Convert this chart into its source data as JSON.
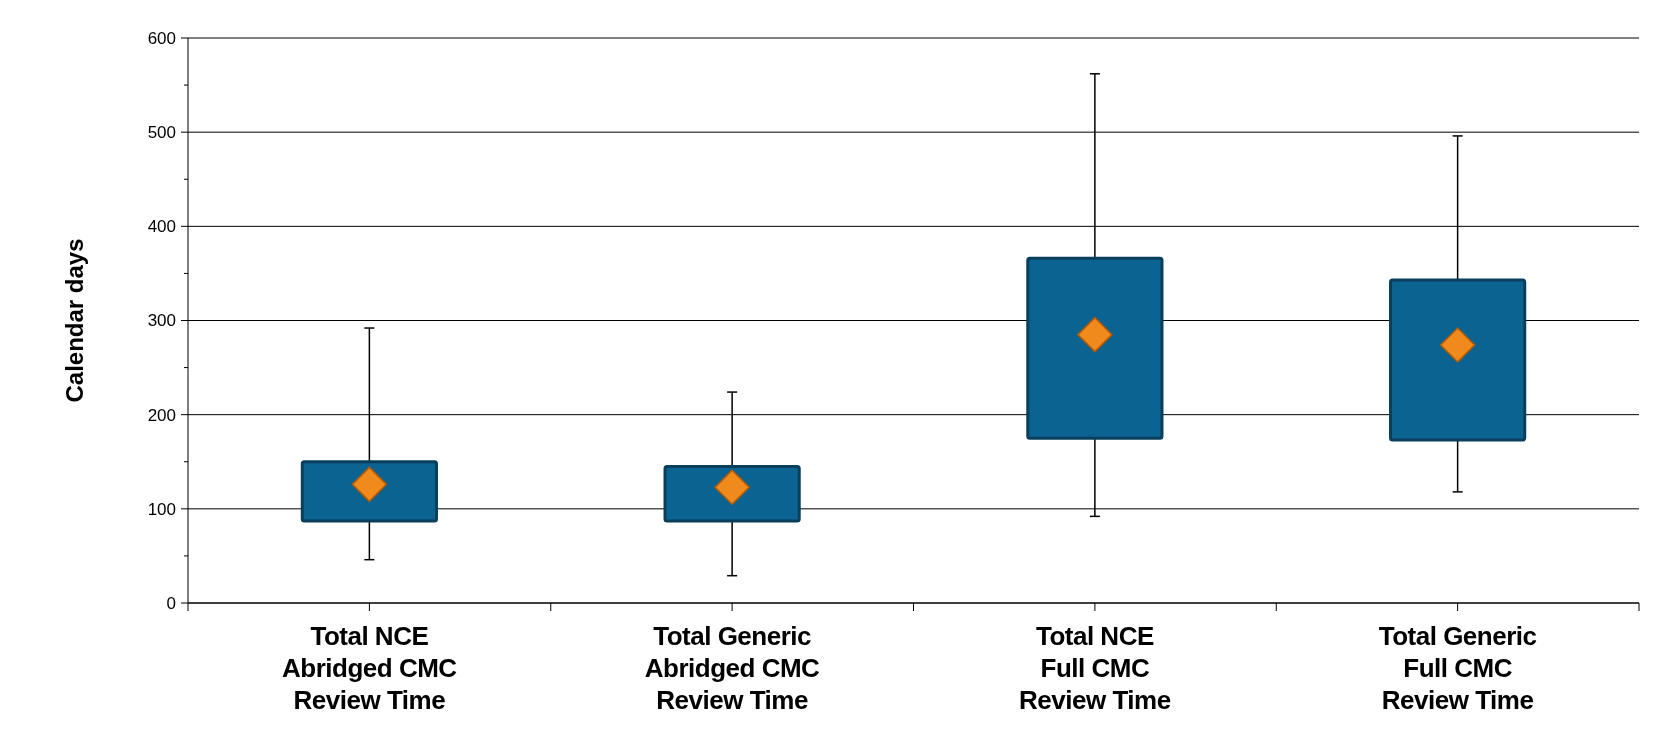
{
  "chart_data": {
    "type": "box",
    "ylabel": "Calendar days",
    "categories": [
      "Total NCE Abridged CMC Review Time",
      "Total Generic Abridged CMC Review Time",
      "Total NCE Full CMC Review Time",
      "Total Generic Full CMC Review Time"
    ],
    "boxes": [
      {
        "low": 46,
        "q1": 87,
        "q3": 150,
        "high": 292,
        "mean": 126
      },
      {
        "low": 29,
        "q1": 87,
        "q3": 145,
        "high": 224,
        "mean": 123
      },
      {
        "low": 92,
        "q1": 175,
        "q3": 366,
        "high": 562,
        "mean": 285
      },
      {
        "low": 118,
        "q1": 173,
        "q3": 343,
        "high": 496,
        "mean": 274
      }
    ],
    "color": "#0b6391",
    "marker": "diamond",
    "ylim": [
      0,
      600
    ],
    "yticks": [
      0,
      {
        "value": 50,
        "label": null
      },
      100,
      {
        "value": 150,
        "label": null
      },
      200,
      {
        "value": 250,
        "label": null
      },
      300,
      {
        "value": 350,
        "label": null
      },
      400,
      {
        "value": 450,
        "label": null
      },
      500,
      {
        "value": 550,
        "label": null
      },
      600
    ],
    "grid": "y"
  }
}
